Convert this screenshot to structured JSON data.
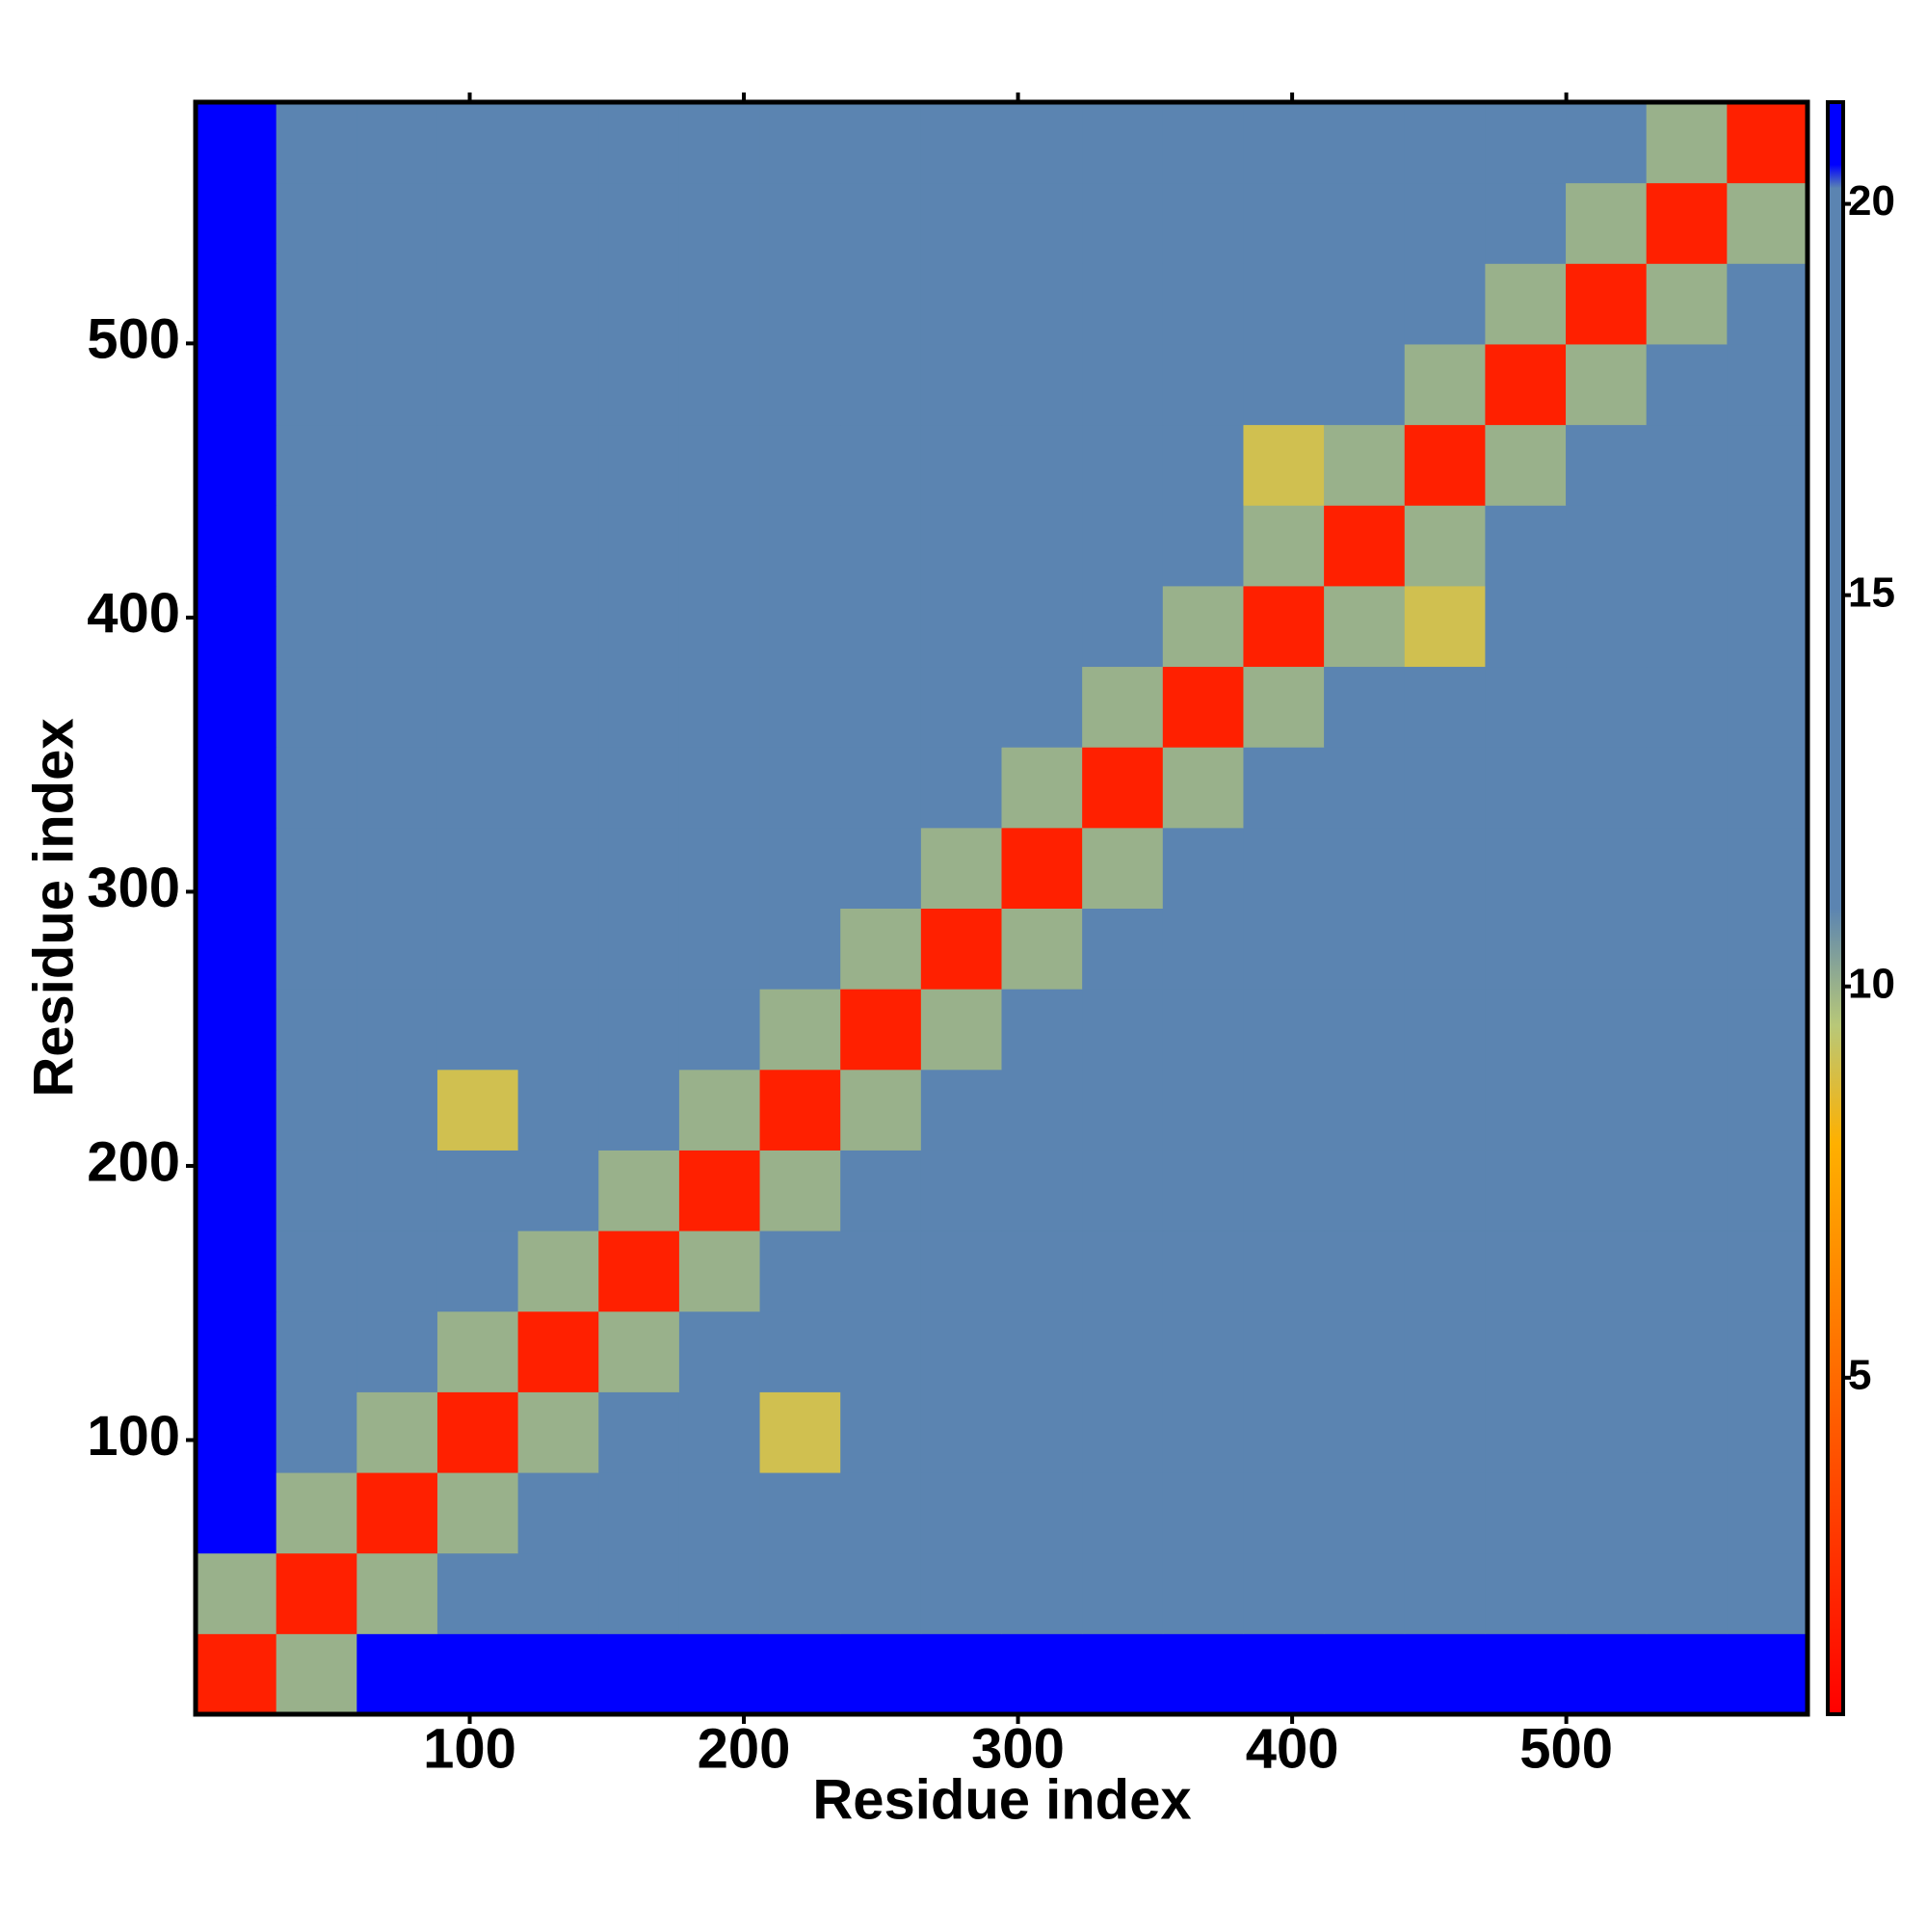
{
  "chart_data": {
    "type": "heatmap",
    "xlabel": "Residue index",
    "ylabel": "Residue index",
    "xlim": [
      0,
      588
    ],
    "ylim": [
      0,
      588
    ],
    "xticks": [
      100,
      200,
      300,
      400,
      500
    ],
    "yticks": [
      100,
      200,
      300,
      400,
      500
    ],
    "bins": [
      0,
      29.4,
      58.8,
      88.2,
      117.6,
      147,
      176.4,
      205.8,
      235.2,
      264.6,
      294,
      323.4,
      352.8,
      382.2,
      411.6,
      441,
      470.4,
      499.8,
      529.2,
      558.6,
      588
    ],
    "z": [
      [
        2,
        10,
        21,
        21,
        21,
        21,
        21,
        21,
        21,
        21,
        21,
        21,
        21,
        21,
        21,
        21,
        21,
        21,
        21,
        21
      ],
      [
        10,
        2,
        10,
        15,
        15,
        15,
        15,
        15,
        15,
        15,
        15,
        18,
        15,
        15,
        15,
        15,
        15,
        19,
        19,
        19
      ],
      [
        21,
        10,
        2,
        10,
        15,
        15,
        15,
        15,
        15,
        15,
        15,
        18,
        15,
        15,
        15,
        15,
        15,
        19,
        19,
        19
      ],
      [
        21,
        15,
        10,
        2,
        10,
        15,
        15,
        9,
        15,
        15,
        15,
        18,
        15,
        15,
        15,
        15,
        15,
        19,
        19,
        19
      ],
      [
        21,
        15,
        15,
        10,
        2,
        10,
        15,
        15,
        15,
        15,
        15,
        18,
        15,
        15,
        15,
        15,
        15,
        19,
        19,
        19
      ],
      [
        21,
        15,
        15,
        15,
        10,
        2,
        10,
        15,
        15,
        15,
        15,
        18,
        15,
        15,
        15,
        15,
        15,
        19,
        19,
        19
      ],
      [
        21,
        15,
        15,
        15,
        15,
        10,
        2,
        10,
        15,
        15,
        15,
        18,
        15,
        15,
        15,
        15,
        15,
        19,
        19,
        19
      ],
      [
        21,
        15,
        15,
        9,
        15,
        15,
        10,
        2,
        10,
        15,
        15,
        18,
        15,
        15,
        15,
        15,
        15,
        19,
        19,
        19
      ],
      [
        21,
        15,
        15,
        15,
        15,
        15,
        15,
        10,
        2,
        10,
        15,
        18,
        15,
        15,
        15,
        15,
        15,
        19,
        19,
        19
      ],
      [
        21,
        15,
        15,
        15,
        15,
        15,
        15,
        15,
        10,
        2,
        10,
        18,
        15,
        15,
        15,
        15,
        15,
        19,
        19,
        19
      ],
      [
        21,
        15,
        15,
        15,
        15,
        15,
        15,
        15,
        15,
        10,
        2,
        10,
        15,
        15,
        15,
        15,
        15,
        19,
        19,
        19
      ],
      [
        21,
        18,
        18,
        18,
        18,
        18,
        18,
        18,
        18,
        18,
        10,
        2,
        10,
        16,
        16,
        16,
        16,
        19,
        19,
        19
      ],
      [
        21,
        15,
        15,
        15,
        15,
        15,
        15,
        15,
        15,
        15,
        15,
        10,
        2,
        10,
        15,
        15,
        15,
        16,
        16,
        12
      ],
      [
        21,
        15,
        15,
        15,
        15,
        15,
        15,
        15,
        15,
        15,
        15,
        16,
        10,
        2,
        10,
        9,
        15,
        16,
        16,
        16
      ],
      [
        21,
        15,
        15,
        15,
        15,
        15,
        15,
        15,
        15,
        15,
        15,
        16,
        15,
        10,
        2,
        10,
        15,
        16,
        16,
        16
      ],
      [
        21,
        15,
        15,
        15,
        15,
        15,
        15,
        15,
        15,
        15,
        15,
        16,
        15,
        9,
        10,
        2,
        10,
        12,
        16,
        16
      ],
      [
        21,
        15,
        15,
        15,
        15,
        15,
        15,
        15,
        15,
        15,
        15,
        16,
        15,
        15,
        15,
        10,
        2,
        10,
        16,
        16
      ],
      [
        21,
        19,
        19,
        19,
        19,
        19,
        19,
        19,
        19,
        19,
        19,
        19,
        16,
        16,
        16,
        12,
        10,
        2,
        10,
        17
      ],
      [
        21,
        19,
        19,
        19,
        19,
        19,
        19,
        19,
        19,
        19,
        19,
        19,
        16,
        16,
        16,
        16,
        16,
        10,
        2,
        10
      ],
      [
        21,
        19,
        19,
        19,
        19,
        19,
        19,
        19,
        19,
        19,
        19,
        19,
        12,
        16,
        16,
        16,
        16,
        17,
        10,
        2
      ]
    ],
    "clim": [
      0.7,
      21.3
    ],
    "cticks": [
      5,
      10,
      15,
      20
    ],
    "colorscale": [
      [
        0.7,
        "#ff0000"
      ],
      [
        5,
        "#ff6a00"
      ],
      [
        8,
        "#ffb000"
      ],
      [
        9.5,
        "#b8c878"
      ],
      [
        11,
        "#5b84b1"
      ],
      [
        20.2,
        "#5b84b1"
      ],
      [
        20.5,
        "#0000ff"
      ],
      [
        21.3,
        "#0000ff"
      ]
    ]
  }
}
